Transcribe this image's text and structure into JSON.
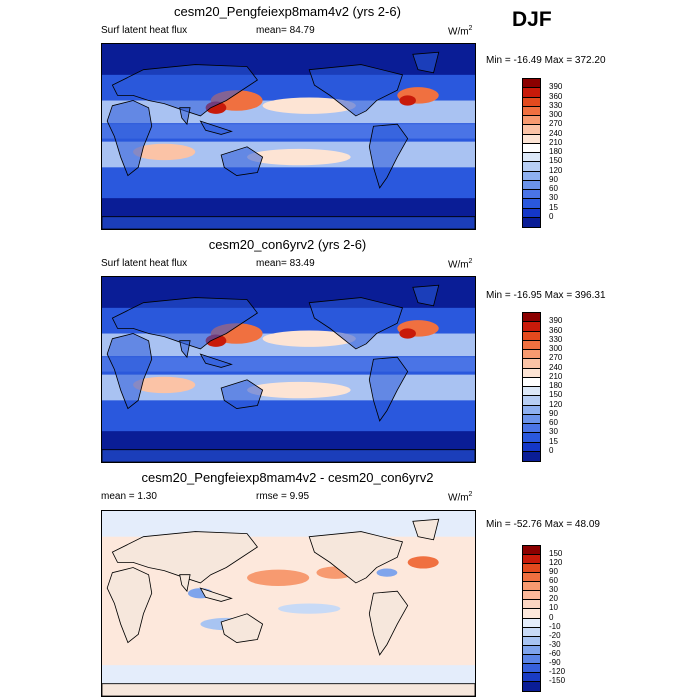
{
  "season": "DJF",
  "panels": [
    {
      "title": "cesm20_Pengfeiexp8mam4v2 (yrs 2-6)",
      "left": "Surf latent heat flux",
      "center": "mean=  84.79",
      "units": "W/m",
      "units_sup": "2",
      "minmax": "Min = -16.49 Max = 372.20",
      "levels": [
        "390",
        "360",
        "330",
        "300",
        "270",
        "240",
        "210",
        "180",
        "150",
        "120",
        "90",
        "60",
        "30",
        "15",
        "0"
      ],
      "colors": [
        "#8b0000",
        "#c81a0a",
        "#e34a1e",
        "#f07040",
        "#f79a70",
        "#fbc3a6",
        "#fde4d4",
        "#ffffff",
        "#dce8f8",
        "#b7cef4",
        "#8eb0f0",
        "#6b93ea",
        "#4a74e6",
        "#2a58dd",
        "#1437c8",
        "#0a1d96"
      ]
    },
    {
      "title": "cesm20_con6yrv2 (yrs 2-6)",
      "left": "Surf latent heat flux",
      "center": "mean=  83.49",
      "units": "W/m",
      "units_sup": "2",
      "minmax": "Min = -16.95 Max = 396.31",
      "levels": [
        "390",
        "360",
        "330",
        "300",
        "270",
        "240",
        "210",
        "180",
        "150",
        "120",
        "90",
        "60",
        "30",
        "15",
        "0"
      ],
      "colors": [
        "#8b0000",
        "#c81a0a",
        "#e34a1e",
        "#f07040",
        "#f79a70",
        "#fbc3a6",
        "#fde4d4",
        "#ffffff",
        "#dce8f8",
        "#b7cef4",
        "#8eb0f0",
        "#6b93ea",
        "#4a74e6",
        "#2a58dd",
        "#1437c8",
        "#0a1d96"
      ]
    },
    {
      "title": "cesm20_Pengfeiexp8mam4v2 - cesm20_con6yrv2",
      "left": "mean =   1.30",
      "center": "rmse =   9.95",
      "units": "W/m",
      "units_sup": "2",
      "minmax": "Min = -52.76 Max =  48.09",
      "levels": [
        "150",
        "120",
        "90",
        "60",
        "30",
        "20",
        "10",
        "0",
        "-10",
        "-20",
        "-30",
        "-60",
        "-90",
        "-120",
        "-150"
      ],
      "colors": [
        "#8b0000",
        "#c81a0a",
        "#e34a1e",
        "#f07040",
        "#f79a70",
        "#fbb89a",
        "#fcd5c2",
        "#fde8dc",
        "#e4edfb",
        "#c8daf6",
        "#a8c4f2",
        "#7fa4ec",
        "#5a84e6",
        "#3660dc",
        "#1a3cc4",
        "#0a1d96"
      ]
    }
  ]
}
